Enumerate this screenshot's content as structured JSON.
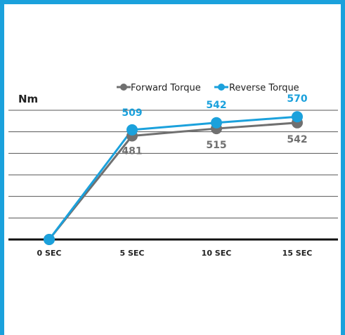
{
  "chart_data": {
    "type": "line",
    "ylabel": "Nm",
    "categories": [
      "0 SEC",
      "5 SEC",
      "10 SEC",
      "15 SEC"
    ],
    "ylim": [
      0,
      600
    ],
    "legend_position": "top-right",
    "grid": true,
    "series": [
      {
        "name": "Forward Torque",
        "color": "#707070",
        "values": [
          0,
          481,
          515,
          542
        ],
        "labels": [
          "",
          "481",
          "515",
          "542"
        ]
      },
      {
        "name": "Reverse Torque",
        "color": "#1ba1dc",
        "values": [
          0,
          509,
          542,
          570
        ],
        "labels": [
          "",
          "509",
          "542",
          "570"
        ]
      }
    ]
  },
  "colors": {
    "frame": "#1ba1dc",
    "grid": "#555555",
    "axis": "#111111"
  }
}
